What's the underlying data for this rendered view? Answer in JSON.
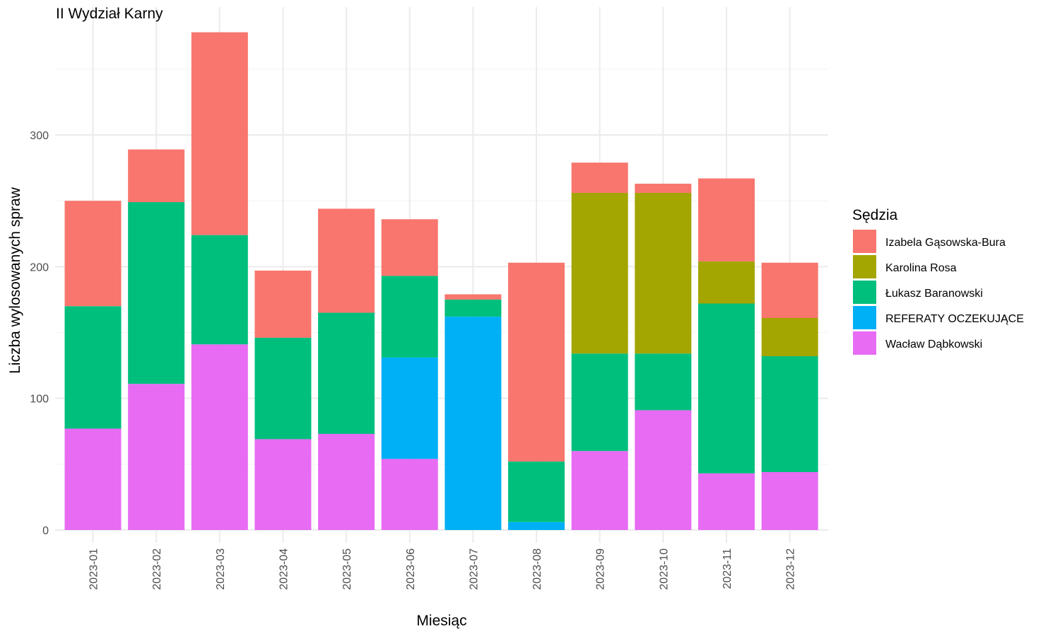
{
  "chart_data": {
    "type": "bar",
    "stacked": true,
    "title": "II Wydział Karny",
    "xlabel": "Miesiąc",
    "ylabel": "Liczba wylosowanych spraw",
    "ylim": [
      0,
      380
    ],
    "yticks": [
      0,
      100,
      200,
      300
    ],
    "grid": true,
    "legend": {
      "title": "Sędzia",
      "position": "right"
    },
    "categories": [
      "2023-01",
      "2023-02",
      "2023-03",
      "2023-04",
      "2023-05",
      "2023-06",
      "2023-07",
      "2023-08",
      "2023-09",
      "2023-10",
      "2023-11",
      "2023-12"
    ],
    "series": [
      {
        "name": "Wacław Dąbkowski",
        "color": "#E76BF3",
        "values": [
          77,
          111,
          141,
          69,
          73,
          54,
          0,
          0,
          60,
          91,
          43,
          44
        ]
      },
      {
        "name": "REFERATY OCZEKUJĄCE",
        "color": "#00B0F6",
        "values": [
          0,
          0,
          0,
          0,
          0,
          77,
          162,
          6,
          0,
          0,
          0,
          0
        ]
      },
      {
        "name": "Łukasz Baranowski",
        "color": "#00BF7D",
        "values": [
          93,
          138,
          83,
          77,
          92,
          62,
          13,
          46,
          74,
          43,
          129,
          88
        ]
      },
      {
        "name": "Karolina Rosa",
        "color": "#A3A500",
        "values": [
          0,
          0,
          0,
          0,
          0,
          0,
          0,
          0,
          122,
          122,
          32,
          29
        ]
      },
      {
        "name": "Izabela Gąsowska-Bura",
        "color": "#F8766D",
        "values": [
          80,
          40,
          154,
          51,
          79,
          43,
          4,
          151,
          23,
          7,
          63,
          42
        ]
      }
    ],
    "legend_order": [
      "Izabela Gąsowska-Bura",
      "Karolina Rosa",
      "Łukasz Baranowski",
      "REFERATY OCZEKUJĄCE",
      "Wacław Dąbkowski"
    ]
  }
}
